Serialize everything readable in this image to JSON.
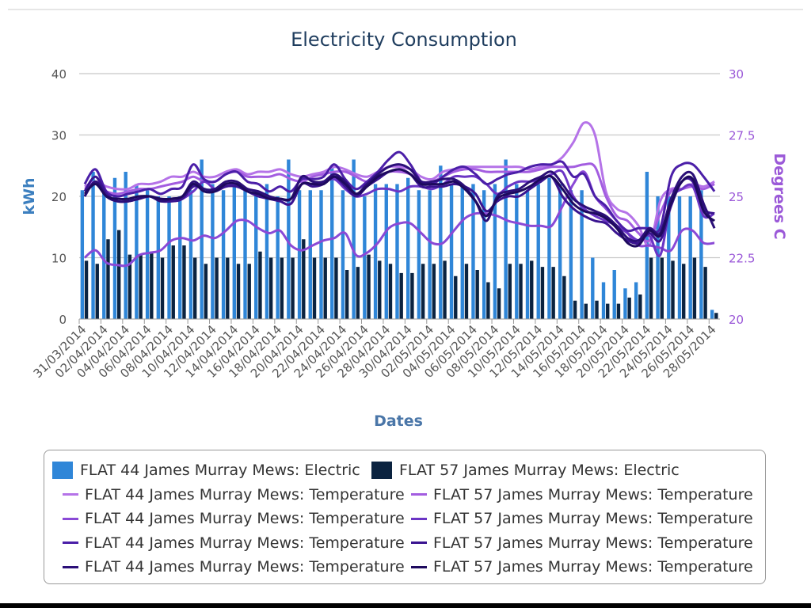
{
  "chart_data": {
    "type": "bar+line",
    "title": "Electricity Consumption",
    "xlabel": "Dates",
    "ylabel_left": "kWh",
    "ylabel_right": "Degrees C",
    "ylim_left": [
      0,
      40
    ],
    "yticks_left": [
      "0",
      "10",
      "20",
      "30",
      "40"
    ],
    "ylim_right": [
      20,
      30
    ],
    "yticks_right": [
      "20",
      "22.5",
      "25",
      "27.5",
      "30"
    ],
    "grid": true,
    "legend_position": "bottom",
    "categories": [
      "31/03/2014",
      "01/04/2014",
      "02/04/2014",
      "03/04/2014",
      "04/04/2014",
      "05/04/2014",
      "06/04/2014",
      "07/04/2014",
      "08/04/2014",
      "09/04/2014",
      "10/04/2014",
      "11/04/2014",
      "12/04/2014",
      "13/04/2014",
      "14/04/2014",
      "15/04/2014",
      "16/04/2014",
      "17/04/2014",
      "18/04/2014",
      "19/04/2014",
      "20/04/2014",
      "21/04/2014",
      "22/04/2014",
      "23/04/2014",
      "24/04/2014",
      "25/04/2014",
      "26/04/2014",
      "27/04/2014",
      "28/04/2014",
      "29/04/2014",
      "30/04/2014",
      "01/05/2014",
      "02/05/2014",
      "03/05/2014",
      "04/05/2014",
      "05/05/2014",
      "06/05/2014",
      "07/05/2014",
      "08/05/2014",
      "09/05/2014",
      "10/05/2014",
      "11/05/2014",
      "12/05/2014",
      "13/05/2014",
      "14/05/2014",
      "15/05/2014",
      "16/05/2014",
      "17/05/2014",
      "18/05/2014",
      "19/05/2014",
      "20/05/2014",
      "21/05/2014",
      "22/05/2014",
      "23/05/2014",
      "24/05/2014",
      "25/05/2014",
      "26/05/2014",
      "27/05/2014",
      "28/05/2014"
    ],
    "tick_labels": [
      "31/03/2014",
      "02/04/2014",
      "04/04/2014",
      "06/04/2014",
      "08/04/2014",
      "10/04/2014",
      "12/04/2014",
      "14/04/2014",
      "16/04/2014",
      "18/04/2014",
      "20/04/2014",
      "22/04/2014",
      "24/04/2014",
      "26/04/2014",
      "28/04/2014",
      "30/04/2014",
      "02/05/2014",
      "04/05/2014",
      "06/05/2014",
      "08/05/2014",
      "10/05/2014",
      "12/05/2014",
      "14/05/2014",
      "16/05/2014",
      "18/05/2014",
      "20/05/2014",
      "22/05/2014",
      "24/05/2014",
      "26/05/2014",
      "28/05/2014"
    ],
    "bar_series": [
      {
        "name": "FLAT 44 James Murray Mews: Electric",
        "color": "#2f86d8",
        "values": [
          21,
          24,
          21,
          23,
          24,
          22,
          21,
          20,
          20,
          20,
          21,
          26,
          22,
          21,
          22,
          21,
          21,
          22,
          20,
          26,
          21,
          21,
          21,
          25,
          21,
          26,
          20,
          22,
          22,
          22,
          23,
          21,
          21,
          25,
          22,
          22,
          22,
          21,
          22,
          26,
          22,
          21,
          22,
          23,
          22,
          21,
          21,
          10,
          6,
          8,
          5,
          6,
          24,
          20,
          20,
          20,
          20,
          21,
          1.5
        ]
      },
      {
        "name": "FLAT 57 James Murray Mews: Electric",
        "color": "#0b2340",
        "values": [
          9.5,
          9,
          13,
          14.5,
          10.5,
          10.5,
          11,
          10,
          12,
          12,
          10,
          9,
          10,
          10,
          9,
          9,
          11,
          10,
          10,
          10,
          13,
          10,
          10,
          10,
          8,
          8.5,
          10.5,
          9.5,
          9,
          7.5,
          7.5,
          9,
          9,
          9.5,
          7,
          9,
          8,
          6,
          5,
          9,
          9,
          9.5,
          8.5,
          8.5,
          7,
          3,
          2.5,
          3,
          2.5,
          2.5,
          3.5,
          4,
          10,
          10,
          9.5,
          9,
          10,
          8.5,
          1
        ]
      }
    ],
    "line_series": [
      {
        "name": "FLAT 44 James Murray Mews: Temperature",
        "color": "#b573e8",
        "values": [
          25.4,
          25.6,
          25.4,
          25.3,
          25.3,
          25.5,
          25.5,
          25.6,
          25.8,
          25.8,
          26.0,
          25.8,
          25.8,
          26.0,
          26.1,
          25.9,
          26.0,
          26.0,
          26.1,
          25.9,
          25.8,
          25.9,
          26.0,
          26.2,
          26.1,
          25.9,
          25.8,
          26.0,
          26.2,
          26.2,
          26.1,
          25.8,
          25.7,
          26.0,
          26.1,
          26.2,
          26.2,
          26.2,
          26.2,
          26.2,
          26.2,
          26.1,
          26.2,
          26.3,
          26.6,
          27.2,
          28.0,
          27.5,
          25.2,
          24.5,
          24.3,
          23.8,
          23.0,
          24.8,
          25.3,
          25.3,
          25.5,
          25.4,
          25.6
        ]
      },
      {
        "name": "FLAT 57 James Murray Mews: Temperature",
        "color": "#a35de0",
        "values": [
          25.3,
          25.5,
          25.2,
          25.1,
          25.2,
          25.3,
          25.3,
          25.4,
          25.5,
          25.6,
          25.8,
          25.6,
          25.6,
          25.9,
          26.0,
          25.8,
          25.8,
          25.8,
          25.9,
          25.7,
          25.6,
          25.8,
          25.9,
          26.0,
          26.0,
          25.8,
          25.6,
          25.8,
          26.0,
          26.0,
          25.9,
          25.6,
          25.6,
          25.8,
          26.0,
          26.1,
          26.1,
          26.0,
          26.0,
          26.0,
          26.0,
          26.0,
          26.1,
          26.2,
          26.2,
          26.2,
          26.3,
          26.2,
          25.0,
          24.2,
          24.0,
          23.5,
          23.2,
          24.3,
          25.2,
          25.3,
          25.4,
          25.3,
          25.5
        ]
      },
      {
        "name": "FLAT 44 James Murray Mews: Temperature",
        "color": "#8a49d6",
        "values": [
          22.5,
          22.8,
          22.3,
          22.2,
          22.2,
          22.6,
          22.7,
          22.8,
          23.2,
          23.3,
          23.2,
          23.4,
          23.3,
          23.6,
          24.0,
          24.0,
          23.7,
          23.5,
          23.6,
          23.0,
          22.8,
          23.0,
          23.2,
          23.3,
          23.5,
          22.6,
          22.7,
          23.1,
          23.7,
          23.9,
          23.9,
          23.5,
          23.1,
          23.1,
          23.6,
          24.1,
          24.3,
          24.3,
          24.2,
          24.0,
          23.9,
          23.8,
          23.8,
          23.8,
          24.6,
          25.5,
          26.0,
          25.0,
          24.5,
          24.0,
          23.5,
          23.0,
          23.0,
          22.9,
          22.8,
          23.6,
          23.6,
          23.1,
          23.1
        ]
      },
      {
        "name": "FLAT 57 James Murray Mews: Temperature",
        "color": "#6b35c5",
        "values": [
          25.0,
          25.6,
          25.0,
          24.8,
          24.8,
          24.9,
          25.0,
          24.9,
          24.8,
          24.9,
          25.2,
          25.6,
          25.3,
          25.4,
          25.5,
          25.3,
          25.2,
          25.0,
          24.8,
          24.7,
          25.5,
          25.5,
          25.6,
          25.7,
          25.3,
          25.0,
          25.1,
          25.3,
          25.3,
          25.2,
          25.4,
          25.4,
          25.3,
          25.5,
          25.8,
          25.8,
          25.8,
          25.5,
          25.1,
          25.4,
          25.6,
          25.6,
          25.7,
          25.9,
          26.0,
          25.0,
          24.5,
          24.2,
          24.0,
          23.8,
          23.5,
          23.2,
          23.4,
          22.6,
          24.8,
          25.3,
          25.4,
          24.2,
          24.3
        ]
      },
      {
        "name": "FLAT 44 James Murray Mews: Temperature",
        "color": "#4b1fa8",
        "values": [
          25.5,
          26.1,
          25.2,
          25.0,
          25.1,
          25.2,
          25.3,
          25.1,
          25.3,
          25.4,
          26.3,
          25.7,
          25.6,
          25.9,
          26.0,
          25.6,
          25.5,
          25.2,
          25.4,
          25.2,
          25.7,
          25.7,
          25.8,
          26.3,
          25.7,
          25.3,
          25.6,
          26.0,
          26.5,
          26.8,
          26.3,
          25.6,
          25.5,
          25.8,
          26.1,
          26.2,
          25.9,
          25.5,
          25.7,
          25.9,
          26.0,
          26.2,
          26.3,
          26.3,
          26.4,
          25.8,
          25.9,
          25.0,
          24.6,
          24.0,
          23.6,
          23.7,
          23.7,
          23.7,
          25.8,
          26.3,
          26.3,
          25.8,
          25.2
        ]
      },
      {
        "name": "FLAT 57 James Murray Mews: Temperature",
        "color": "#3a1490",
        "values": [
          25.2,
          25.8,
          25.1,
          24.8,
          24.8,
          24.9,
          25.0,
          24.8,
          24.8,
          24.9,
          25.4,
          25.3,
          25.2,
          25.4,
          25.4,
          25.2,
          25.0,
          24.9,
          24.8,
          24.7,
          25.5,
          25.4,
          25.5,
          25.8,
          25.4,
          25.0,
          25.4,
          25.7,
          26.0,
          26.1,
          25.9,
          25.4,
          25.4,
          25.4,
          25.5,
          25.4,
          25.1,
          24.4,
          24.8,
          25.0,
          25.0,
          25.3,
          25.6,
          25.8,
          25.0,
          24.5,
          24.2,
          24.0,
          23.9,
          23.5,
          23.2,
          23.1,
          23.5,
          23.2,
          24.6,
          25.6,
          25.6,
          24.5,
          24.3
        ]
      },
      {
        "name": "FLAT 44 James Murray Mews: Temperature",
        "color": "#2b0f78",
        "values": [
          25.0,
          25.6,
          25.0,
          24.8,
          24.8,
          24.9,
          25.0,
          24.8,
          24.9,
          25.0,
          25.6,
          25.3,
          25.3,
          25.6,
          25.6,
          25.3,
          25.2,
          25.0,
          24.9,
          24.9,
          25.8,
          25.6,
          25.6,
          25.9,
          25.6,
          25.1,
          25.5,
          25.9,
          26.2,
          26.3,
          26.1,
          25.6,
          25.6,
          25.7,
          25.7,
          25.4,
          24.8,
          24.0,
          25.0,
          25.2,
          25.3,
          25.6,
          25.8,
          26.0,
          25.5,
          24.9,
          24.6,
          24.4,
          24.2,
          23.8,
          23.3,
          23.2,
          23.7,
          23.5,
          24.9,
          25.8,
          25.9,
          24.7,
          23.7
        ]
      },
      {
        "name": "FLAT 57 James Murray Mews: Temperature",
        "color": "#1e0a5e",
        "values": [
          25.1,
          25.5,
          25.0,
          24.9,
          24.9,
          25.0,
          25.0,
          24.9,
          24.9,
          25.0,
          25.5,
          25.2,
          25.2,
          25.5,
          25.5,
          25.2,
          25.1,
          24.9,
          24.9,
          24.9,
          25.5,
          25.5,
          25.5,
          25.8,
          25.5,
          25.1,
          25.4,
          25.8,
          26.0,
          26.1,
          25.9,
          25.5,
          25.5,
          25.5,
          25.6,
          25.3,
          24.8,
          24.2,
          24.9,
          25.1,
          25.2,
          25.4,
          25.7,
          25.8,
          25.3,
          24.7,
          24.4,
          24.3,
          24.1,
          23.7,
          23.1,
          23.0,
          23.6,
          23.4,
          24.7,
          25.6,
          25.7,
          24.4,
          24.0
        ]
      }
    ]
  }
}
